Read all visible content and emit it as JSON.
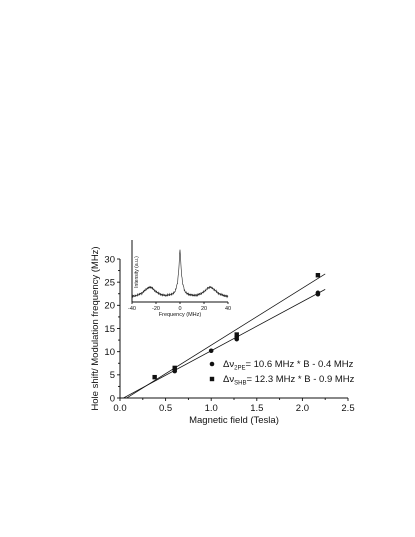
{
  "chart_data": [
    {
      "type": "scatter",
      "xlabel": "Magnetic field (Tesla)",
      "ylabel": "Hole shift/ Modulation frequency (MHz)",
      "xlim": [
        0.0,
        2.5
      ],
      "ylim": [
        0,
        30
      ],
      "x_ticks": [
        "0.0",
        "0.5",
        "1.0",
        "1.5",
        "2.0",
        "2.5"
      ],
      "y_ticks": [
        "0",
        "5",
        "10",
        "15",
        "20",
        "25",
        "30"
      ],
      "x_tick_values": [
        0.0,
        0.5,
        1.0,
        1.5,
        2.0,
        2.5
      ],
      "y_tick_values": [
        0,
        5,
        10,
        15,
        20,
        25,
        30
      ],
      "grid": false,
      "legend_position": "lower-right",
      "series": [
        {
          "marker": "circle",
          "legend": {
            "prefix": "Δν",
            "sub": "2PE",
            "suffix": "= 10.6 MHz * B - 0.4 MHz"
          },
          "x": [
            0.6,
            0.6,
            1.0,
            1.28,
            1.28,
            2.17,
            2.17
          ],
          "y": [
            5.8,
            6.2,
            10.2,
            12.7,
            13.2,
            22.4,
            22.7
          ],
          "fit": {
            "slope": 10.6,
            "intercept": -0.4
          }
        },
        {
          "marker": "square",
          "legend": {
            "prefix": "Δν",
            "sub": "SHB",
            "suffix": "= 12.3 MHz * B - 0.9 MHz"
          },
          "x": [
            0.38,
            0.6,
            1.28,
            2.17
          ],
          "y": [
            4.5,
            6.5,
            13.7,
            26.5
          ],
          "fit": {
            "slope": 12.3,
            "intercept": -0.9
          }
        }
      ]
    },
    {
      "type": "line",
      "inset": true,
      "xlabel": "Frequency (MHz)",
      "ylabel": "Intensity (a.u.)",
      "xlim": [
        -40,
        40
      ],
      "x_ticks": [
        "-40",
        "-20",
        "0",
        "20",
        "40"
      ],
      "x_tick_values": [
        -40,
        -20,
        0,
        20,
        40
      ],
      "grid": false,
      "x": [
        -40,
        -36,
        -32,
        -29,
        -27,
        -25,
        -23,
        -21,
        -18,
        -15,
        -12,
        -9,
        -6,
        -4,
        -2,
        -1,
        0,
        1,
        2,
        4,
        6,
        9,
        12,
        15,
        18,
        21,
        23,
        25,
        27,
        29,
        32,
        36,
        40
      ],
      "y": [
        0.03,
        0.05,
        0.09,
        0.15,
        0.19,
        0.21,
        0.19,
        0.14,
        0.09,
        0.06,
        0.05,
        0.06,
        0.08,
        0.13,
        0.3,
        0.55,
        0.95,
        0.55,
        0.3,
        0.13,
        0.08,
        0.06,
        0.05,
        0.06,
        0.09,
        0.14,
        0.19,
        0.21,
        0.19,
        0.15,
        0.09,
        0.05,
        0.03
      ]
    }
  ]
}
